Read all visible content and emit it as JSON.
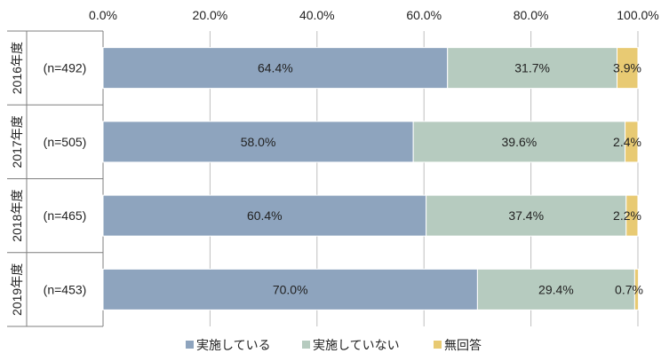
{
  "chart_data": {
    "type": "bar",
    "orientation": "horizontal",
    "stacked": true,
    "xlim": [
      0,
      100
    ],
    "x_ticks": [
      "0.0%",
      "20.0%",
      "40.0%",
      "60.0%",
      "80.0%",
      "100.0%"
    ],
    "grid": true,
    "legend_position": "bottom",
    "categories": [
      {
        "year": "2016年度",
        "n": "(n=492)"
      },
      {
        "year": "2017年度",
        "n": "(n=505)"
      },
      {
        "year": "2018年度",
        "n": "(n=465)"
      },
      {
        "year": "2019年度",
        "n": "(n=453)"
      }
    ],
    "series": [
      {
        "name": "実施している",
        "color": "#8ea4be",
        "values": [
          64.4,
          58.0,
          60.4,
          70.0
        ],
        "labels": [
          "64.4%",
          "58.0%",
          "60.4%",
          "70.0%"
        ]
      },
      {
        "name": "実施していない",
        "color": "#b6cbbf",
        "values": [
          31.7,
          39.6,
          37.4,
          29.4
        ],
        "labels": [
          "31.7%",
          "39.6%",
          "37.4%",
          "29.4%"
        ]
      },
      {
        "name": "無回答",
        "color": "#e8ca73",
        "values": [
          3.9,
          2.4,
          2.2,
          0.7
        ],
        "labels": [
          "3.9%",
          "2.4%",
          "2.2%",
          "0.7%"
        ]
      }
    ]
  }
}
